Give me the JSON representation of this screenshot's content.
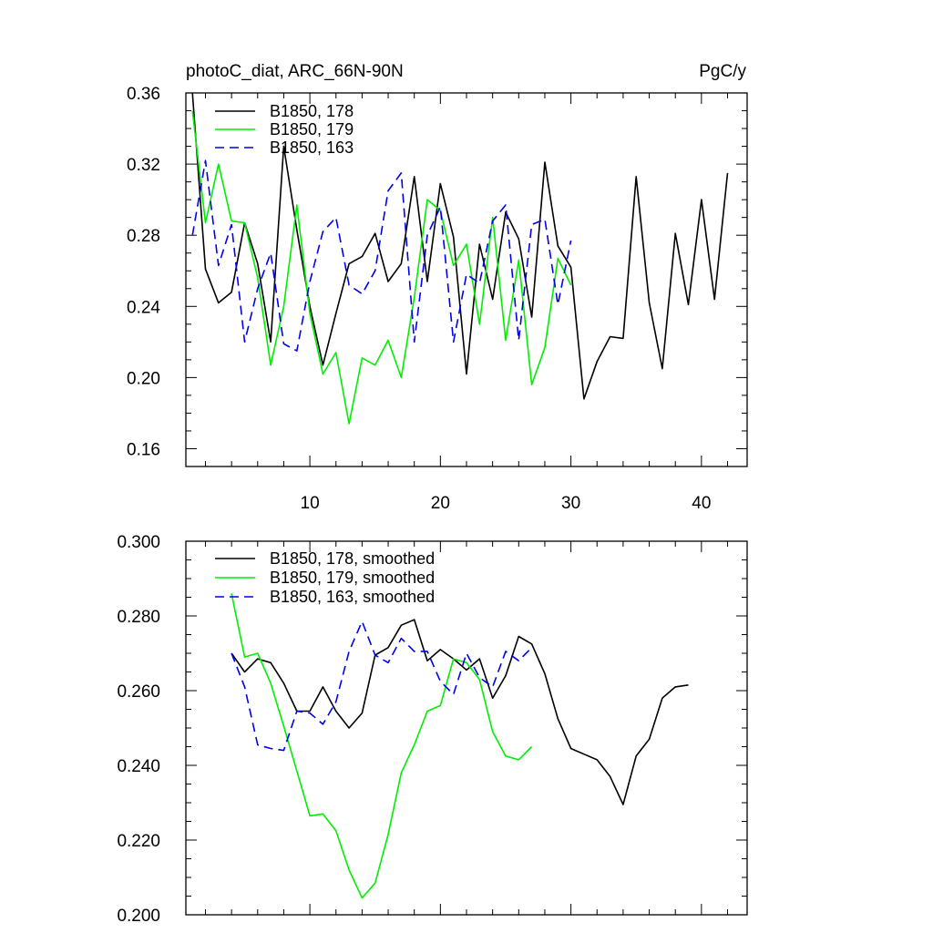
{
  "chart_data": [
    {
      "type": "line",
      "title": "photoC_diat, ARC_66N-90N",
      "units": "PgC/y",
      "xlim": [
        0.5,
        43.5
      ],
      "ylim": [
        0.15,
        0.36
      ],
      "xticks": [
        10,
        20,
        30,
        40
      ],
      "yticks": [
        0.16,
        0.2,
        0.24,
        0.28,
        0.32,
        0.36
      ],
      "ytick_labels": [
        "0.16",
        "0.20",
        "0.24",
        "0.28",
        "0.32",
        "0.36"
      ],
      "legend_position": "top-left",
      "series": [
        {
          "name": "B1850, 178",
          "color": "#000000",
          "dash": "solid",
          "x0": 1,
          "values": [
            0.36,
            0.261,
            0.242,
            0.248,
            0.287,
            0.264,
            0.22,
            0.33,
            0.283,
            0.24,
            0.207,
            0.236,
            0.264,
            0.268,
            0.281,
            0.254,
            0.264,
            0.313,
            0.254,
            0.309,
            0.279,
            0.202,
            0.275,
            0.244,
            0.293,
            0.278,
            0.234,
            0.321,
            0.274,
            0.262,
            0.188,
            0.209,
            0.223,
            0.222,
            0.313,
            0.242,
            0.205,
            0.281,
            0.241,
            0.3,
            0.244,
            0.315
          ]
        },
        {
          "name": "B1850, 179",
          "color": "#00ee00",
          "dash": "solid",
          "x0": 1,
          "values": [
            0.35,
            0.287,
            0.32,
            0.288,
            0.287,
            0.256,
            0.207,
            0.24,
            0.297,
            0.236,
            0.202,
            0.214,
            0.174,
            0.211,
            0.207,
            0.221,
            0.2,
            0.245,
            0.3,
            0.294,
            0.263,
            0.275,
            0.23,
            0.29,
            0.221,
            0.266,
            0.196,
            0.217,
            0.267,
            0.252
          ]
        },
        {
          "name": "B1850, 163",
          "color": "#0000ee",
          "dash": "dashed",
          "x0": 1,
          "values": [
            0.28,
            0.322,
            0.263,
            0.286,
            0.22,
            0.25,
            0.27,
            0.219,
            0.215,
            0.254,
            0.282,
            0.29,
            0.252,
            0.247,
            0.26,
            0.305,
            0.315,
            0.22,
            0.28,
            0.296,
            0.22,
            0.258,
            0.253,
            0.288,
            0.297,
            0.221,
            0.286,
            0.289,
            0.241,
            0.277
          ]
        }
      ]
    },
    {
      "type": "line",
      "title": "",
      "units": "",
      "xlim": [
        0.5,
        43.5
      ],
      "ylim": [
        0.2,
        0.3
      ],
      "xticks": [
        10,
        20,
        30,
        40
      ],
      "yticks": [
        0.2,
        0.22,
        0.24,
        0.26,
        0.28,
        0.3
      ],
      "ytick_labels": [
        "0.200",
        "0.220",
        "0.240",
        "0.260",
        "0.280",
        "0.300"
      ],
      "legend_position": "top-left",
      "series": [
        {
          "name": "B1850, 178, smoothed",
          "color": "#000000",
          "dash": "solid",
          "x0": 4,
          "values": [
            0.27,
            0.265,
            0.2685,
            0.2675,
            0.262,
            0.2545,
            0.2545,
            0.261,
            0.2545,
            0.25,
            0.254,
            0.2695,
            0.2715,
            0.2775,
            0.279,
            0.268,
            0.271,
            0.2685,
            0.2655,
            0.2685,
            0.258,
            0.264,
            0.2745,
            0.2725,
            0.2645,
            0.2525,
            0.2445,
            0.243,
            0.2415,
            0.237,
            0.2295,
            0.2425,
            0.247,
            0.258,
            0.261,
            0.2615
          ]
        },
        {
          "name": "B1850, 179, smoothed",
          "color": "#00ee00",
          "dash": "solid",
          "x0": 4,
          "values": [
            0.286,
            0.269,
            0.27,
            0.262,
            0.2505,
            0.2385,
            0.2265,
            0.227,
            0.2225,
            0.212,
            0.2045,
            0.2085,
            0.2215,
            0.238,
            0.2455,
            0.2545,
            0.256,
            0.2685,
            0.2675,
            0.263,
            0.249,
            0.2425,
            0.2415,
            0.245
          ]
        },
        {
          "name": "B1850, 163, smoothed",
          "color": "#0000ee",
          "dash": "dashed",
          "x0": 4,
          "values": [
            0.27,
            0.261,
            0.2455,
            0.2445,
            0.244,
            0.2545,
            0.254,
            0.251,
            0.257,
            0.2705,
            0.2785,
            0.2695,
            0.2675,
            0.274,
            0.2705,
            0.2705,
            0.2625,
            0.259,
            0.27,
            0.2635,
            0.261,
            0.2705,
            0.268,
            0.2715
          ]
        }
      ]
    }
  ]
}
